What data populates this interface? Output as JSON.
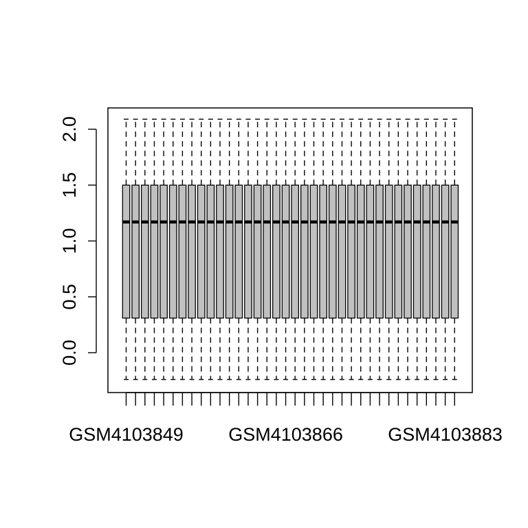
{
  "chart_data": {
    "type": "boxplot",
    "title": "",
    "xlabel": "",
    "ylabel": "",
    "ylim": [
      -0.35,
      2.15
    ],
    "y_ticks": [
      "0.0",
      "0.5",
      "1.0",
      "1.5",
      "2.0"
    ],
    "x_tick_labels": [
      {
        "index": 0,
        "label": "GSM4103849"
      },
      {
        "index": 17,
        "label": "GSM4103866"
      },
      {
        "index": 34,
        "label": "GSM4103883"
      }
    ],
    "n_samples": 36,
    "box_fill": "#c0c0c0",
    "stats": {
      "whisker_low": -0.24,
      "q1": 0.31,
      "median": 1.17,
      "q3": 1.5,
      "whisker_high": 2.09
    },
    "grid": false,
    "legend": "none"
  }
}
